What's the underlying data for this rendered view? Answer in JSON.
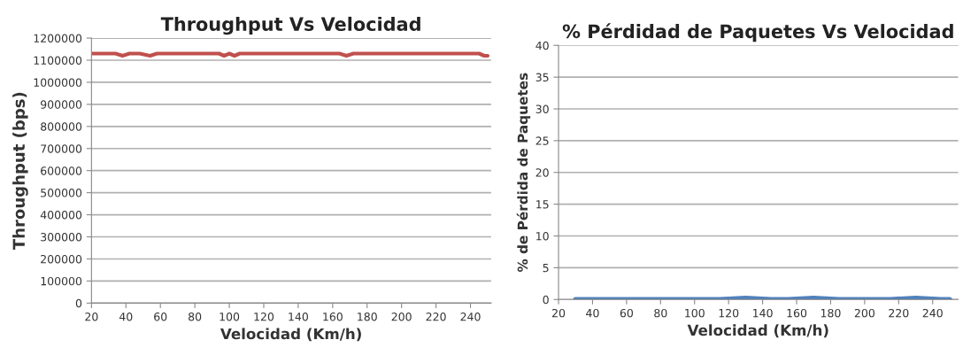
{
  "chart_data": [
    {
      "type": "line",
      "title": "Throughput Vs Velocidad",
      "xlabel": "Velocidad (Km/h)",
      "ylabel": "Throughput (bps)",
      "x": [
        20,
        30,
        34,
        38,
        42,
        48,
        54,
        58,
        70,
        80,
        90,
        94,
        97,
        100,
        103,
        106,
        120,
        140,
        160,
        164,
        168,
        172,
        190,
        210,
        230,
        245,
        248,
        250
      ],
      "series": [
        {
          "color": "#c0504d",
          "values": [
            1130000,
            1130000,
            1130000,
            1120000,
            1130000,
            1130000,
            1120000,
            1130000,
            1130000,
            1130000,
            1130000,
            1130000,
            1120000,
            1130000,
            1120000,
            1130000,
            1130000,
            1130000,
            1130000,
            1130000,
            1120000,
            1130000,
            1130000,
            1130000,
            1130000,
            1130000,
            1120000,
            1120000
          ]
        }
      ],
      "xlim": [
        20,
        252
      ],
      "xticks": [
        20,
        40,
        60,
        80,
        100,
        120,
        140,
        160,
        180,
        200,
        220,
        240
      ],
      "ylim": [
        0,
        1200000
      ],
      "yticks": [
        0,
        100000,
        200000,
        300000,
        400000,
        500000,
        600000,
        700000,
        800000,
        900000,
        1000000,
        1100000,
        1200000
      ],
      "grid": "y",
      "legend": false
    },
    {
      "type": "line",
      "title": "% Pérdidad de Paquetes Vs Velocidad",
      "xlabel": "Velocidad (Km/h)",
      "ylabel": "% de Pérdida de Paquetes",
      "x": [
        30,
        60,
        100,
        115,
        130,
        145,
        155,
        170,
        185,
        200,
        215,
        230,
        245,
        250
      ],
      "series": [
        {
          "color": "#4f81bd",
          "values": [
            0,
            0,
            0,
            0,
            0.2,
            0,
            0,
            0.2,
            0,
            0,
            0,
            0.2,
            0,
            0
          ]
        }
      ],
      "xlim": [
        20,
        255
      ],
      "xticks": [
        20,
        40,
        60,
        80,
        100,
        120,
        140,
        160,
        180,
        200,
        220,
        240
      ],
      "ylim": [
        0,
        40
      ],
      "yticks": [
        0,
        5,
        10,
        15,
        20,
        25,
        30,
        35,
        40
      ],
      "grid": "y",
      "legend": false
    }
  ]
}
